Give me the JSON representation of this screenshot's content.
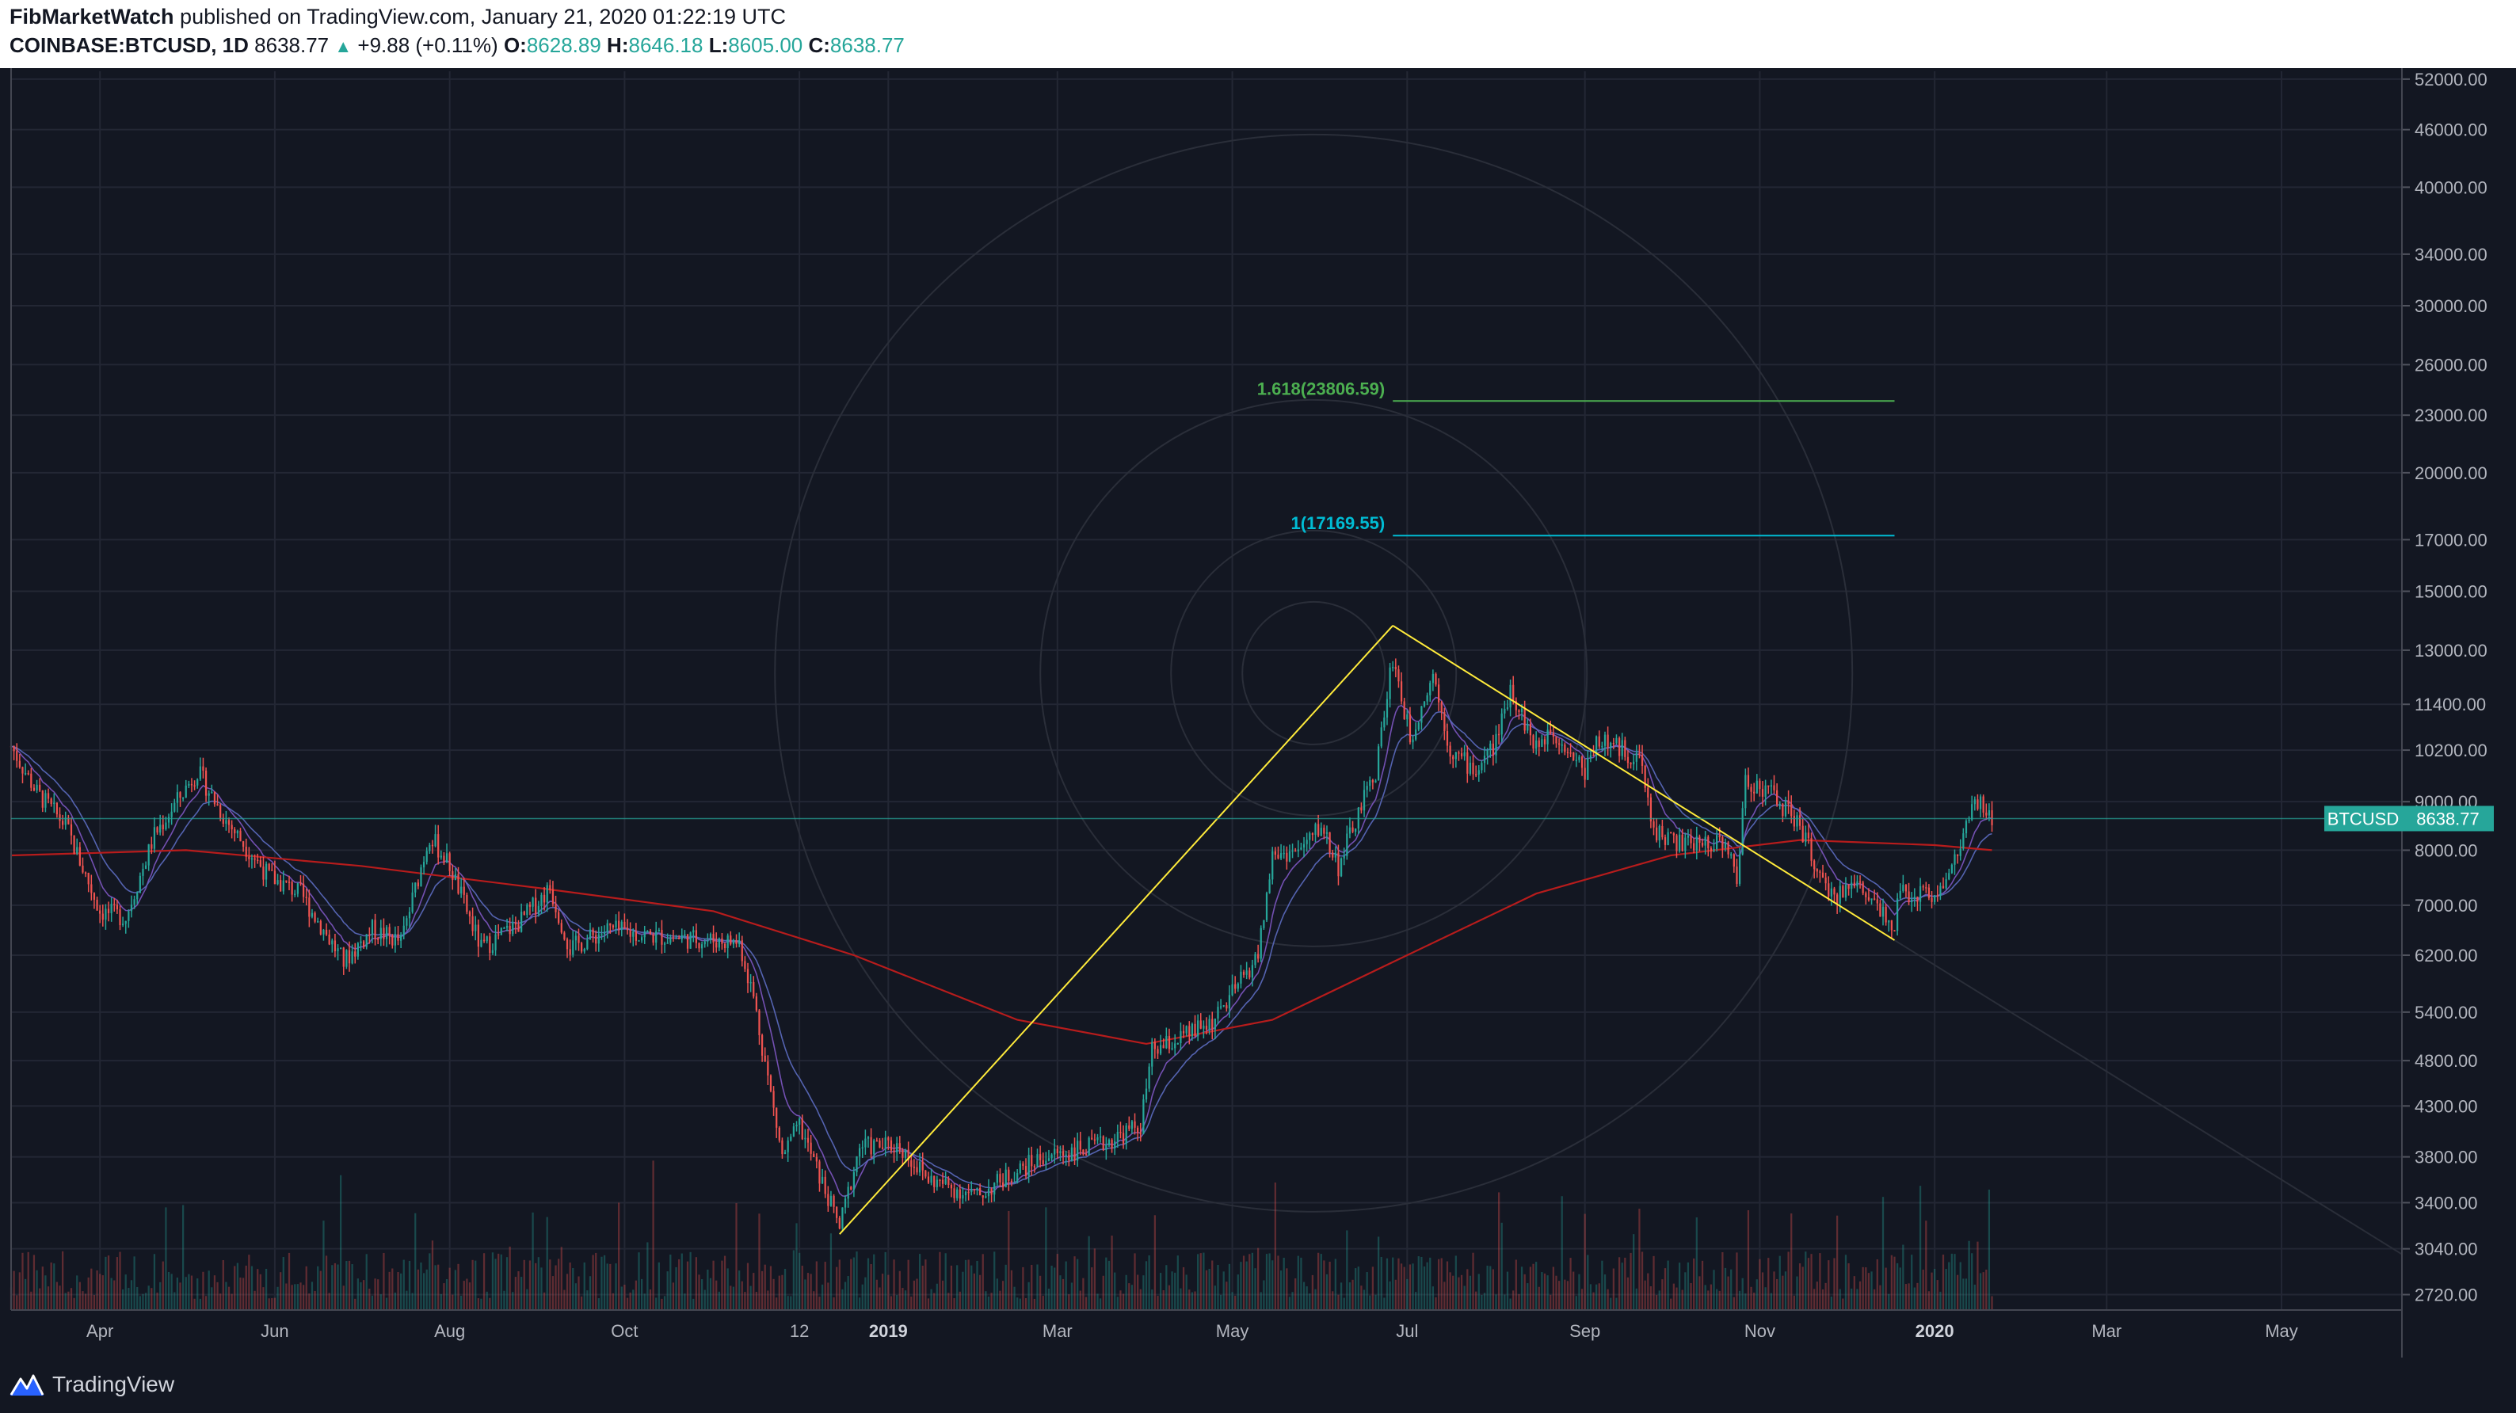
{
  "header": {
    "author": "FibMarketWatch",
    "published": "published on TradingView.com, January 21, 2020 01:22:19 UTC",
    "symbol": "COINBASE:BTCUSD, 1D",
    "last": "8638.77",
    "change": "+9.88 (+0.11%)",
    "o_label": "O:",
    "o_value": "8628.89",
    "h_label": "H:",
    "h_value": "8646.18",
    "l_label": "L:",
    "l_value": "8605.00",
    "c_label": "C:",
    "c_value": "8638.77"
  },
  "footer": {
    "brand": "TradingView",
    "logo_icon": "tradingview-logo-icon"
  },
  "chart_data": {
    "type": "line",
    "title": "",
    "series_name": "BTCUSD",
    "scale": "log",
    "ylim": [
      2620,
      53000
    ],
    "y_ticks": [
      52000,
      46000,
      40000,
      34000,
      30000,
      26000,
      23000,
      20000,
      17000,
      15000,
      13000,
      11400,
      10200,
      9000,
      8000,
      7000,
      6200,
      5400,
      4800,
      4300,
      3800,
      3400,
      3040,
      2720
    ],
    "y_tick_labels": [
      "52000.00",
      "46000.00",
      "40000.00",
      "34000.00",
      "30000.00",
      "26000.00",
      "23000.00",
      "20000.00",
      "17000.00",
      "15000.00",
      "13000.00",
      "11400.00",
      "10200.00",
      "9000.00",
      "8000.00",
      "7000.00",
      "6200.00",
      "5400.00",
      "4800.00",
      "4300.00",
      "3800.00",
      "3400.00",
      "3040.00",
      "2720.00"
    ],
    "x_labels": [
      "Apr",
      "Jun",
      "Aug",
      "Oct",
      "12",
      "2019",
      "Mar",
      "May",
      "Jul",
      "Sep",
      "Nov",
      "2020",
      "Mar",
      "May"
    ],
    "x_label_dates": [
      "2018-04-01",
      "2018-06-01",
      "2018-08-01",
      "2018-10-01",
      "2018-12-01",
      "2019-01-01",
      "2019-03-01",
      "2019-05-01",
      "2019-07-01",
      "2019-09-01",
      "2019-11-01",
      "2020-01-01",
      "2020-03-01",
      "2020-05-01"
    ],
    "x_range": [
      "2018-03-01",
      "2020-06-12"
    ],
    "last_price_label": "BTCUSD",
    "last_price_value": "8638.77",
    "last_price": 8638.77,
    "price_path": [
      [
        "2018-03-01",
        10300
      ],
      [
        "2018-03-10",
        9200
      ],
      [
        "2018-03-20",
        8500
      ],
      [
        "2018-04-01",
        6900
      ],
      [
        "2018-04-10",
        6800
      ],
      [
        "2018-04-20",
        8300
      ],
      [
        "2018-05-05",
        9700
      ],
      [
        "2018-05-15",
        8600
      ],
      [
        "2018-05-30",
        7500
      ],
      [
        "2018-06-10",
        7200
      ],
      [
        "2018-06-25",
        6100
      ],
      [
        "2018-07-05",
        6600
      ],
      [
        "2018-07-15",
        6400
      ],
      [
        "2018-07-25",
        8300
      ],
      [
        "2018-08-01",
        7700
      ],
      [
        "2018-08-12",
        6300
      ],
      [
        "2018-08-25",
        6700
      ],
      [
        "2018-09-05",
        7300
      ],
      [
        "2018-09-12",
        6300
      ],
      [
        "2018-09-25",
        6600
      ],
      [
        "2018-10-10",
        6500
      ],
      [
        "2018-10-25",
        6450
      ],
      [
        "2018-11-10",
        6400
      ],
      [
        "2018-11-15",
        5600
      ],
      [
        "2018-11-20",
        4600
      ],
      [
        "2018-11-25",
        3800
      ],
      [
        "2018-12-01",
        4100
      ],
      [
        "2018-12-10",
        3500
      ],
      [
        "2018-12-15",
        3200
      ],
      [
        "2018-12-22",
        3900
      ],
      [
        "2019-01-05",
        3900
      ],
      [
        "2019-01-15",
        3600
      ],
      [
        "2019-02-01",
        3450
      ],
      [
        "2019-02-10",
        3600
      ],
      [
        "2019-02-24",
        3800
      ],
      [
        "2019-03-15",
        3900
      ],
      [
        "2019-03-30",
        4100
      ],
      [
        "2019-04-03",
        4900
      ],
      [
        "2019-04-15",
        5100
      ],
      [
        "2019-04-25",
        5300
      ],
      [
        "2019-05-10",
        6200
      ],
      [
        "2019-05-15",
        7900
      ],
      [
        "2019-05-25",
        8000
      ],
      [
        "2019-06-01",
        8500
      ],
      [
        "2019-06-07",
        7700
      ],
      [
        "2019-06-15",
        8900
      ],
      [
        "2019-06-20",
        9700
      ],
      [
        "2019-06-26",
        12800
      ],
      [
        "2019-07-02",
        10500
      ],
      [
        "2019-07-10",
        12300
      ],
      [
        "2019-07-16",
        10200
      ],
      [
        "2019-07-25",
        9700
      ],
      [
        "2019-08-01",
        10400
      ],
      [
        "2019-08-06",
        11900
      ],
      [
        "2019-08-15",
        10200
      ],
      [
        "2019-08-20",
        10800
      ],
      [
        "2019-09-01",
        9700
      ],
      [
        "2019-09-05",
        10500
      ],
      [
        "2019-09-20",
        10000
      ],
      [
        "2019-09-25",
        8400
      ],
      [
        "2019-10-05",
        8100
      ],
      [
        "2019-10-20",
        8200
      ],
      [
        "2019-10-24",
        7400
      ],
      [
        "2019-10-27",
        9500
      ],
      [
        "2019-11-05",
        9200
      ],
      [
        "2019-11-15",
        8500
      ],
      [
        "2019-11-25",
        7100
      ],
      [
        "2019-12-05",
        7400
      ],
      [
        "2019-12-18",
        6700
      ],
      [
        "2019-12-20",
        7200
      ],
      [
        "2019-12-31",
        7200
      ],
      [
        "2020-01-05",
        7400
      ],
      [
        "2020-01-10",
        8100
      ],
      [
        "2020-01-14",
        8800
      ],
      [
        "2020-01-17",
        8900
      ],
      [
        "2020-01-21",
        8638
      ]
    ],
    "ma_200_path": [
      [
        "2018-03-01",
        7900
      ],
      [
        "2018-05-01",
        8000
      ],
      [
        "2018-07-01",
        7700
      ],
      [
        "2018-09-01",
        7300
      ],
      [
        "2018-11-01",
        6900
      ],
      [
        "2018-12-20",
        6200
      ],
      [
        "2019-02-15",
        5300
      ],
      [
        "2019-04-01",
        5000
      ],
      [
        "2019-05-15",
        5300
      ],
      [
        "2019-07-01",
        6200
      ],
      [
        "2019-08-15",
        7200
      ],
      [
        "2019-10-01",
        7900
      ],
      [
        "2019-11-15",
        8200
      ],
      [
        "2020-01-01",
        8100
      ],
      [
        "2020-01-21",
        8000
      ]
    ],
    "annotations": [
      {
        "label": "1.618(23806.59)",
        "price": 23806.59,
        "color": "#4caf50",
        "from": "2019-06-26",
        "to": "2019-12-18"
      },
      {
        "label": "1(17169.55)",
        "price": 17169.55,
        "color": "#00bcd4",
        "from": "2019-06-26",
        "to": "2019-12-18"
      }
    ],
    "trend_lines": [
      {
        "from": [
          "2018-12-15",
          3150
        ],
        "to": [
          "2019-06-26",
          13800
        ],
        "color": "#ffeb3b"
      },
      {
        "from": [
          "2019-06-26",
          13800
        ],
        "to": [
          "2019-12-18",
          6430
        ],
        "color": "#ffeb3b"
      }
    ],
    "colors": {
      "up": "#26a69a",
      "down": "#ef5350",
      "ma200": "#b71c1c",
      "background": "#131722"
    }
  }
}
